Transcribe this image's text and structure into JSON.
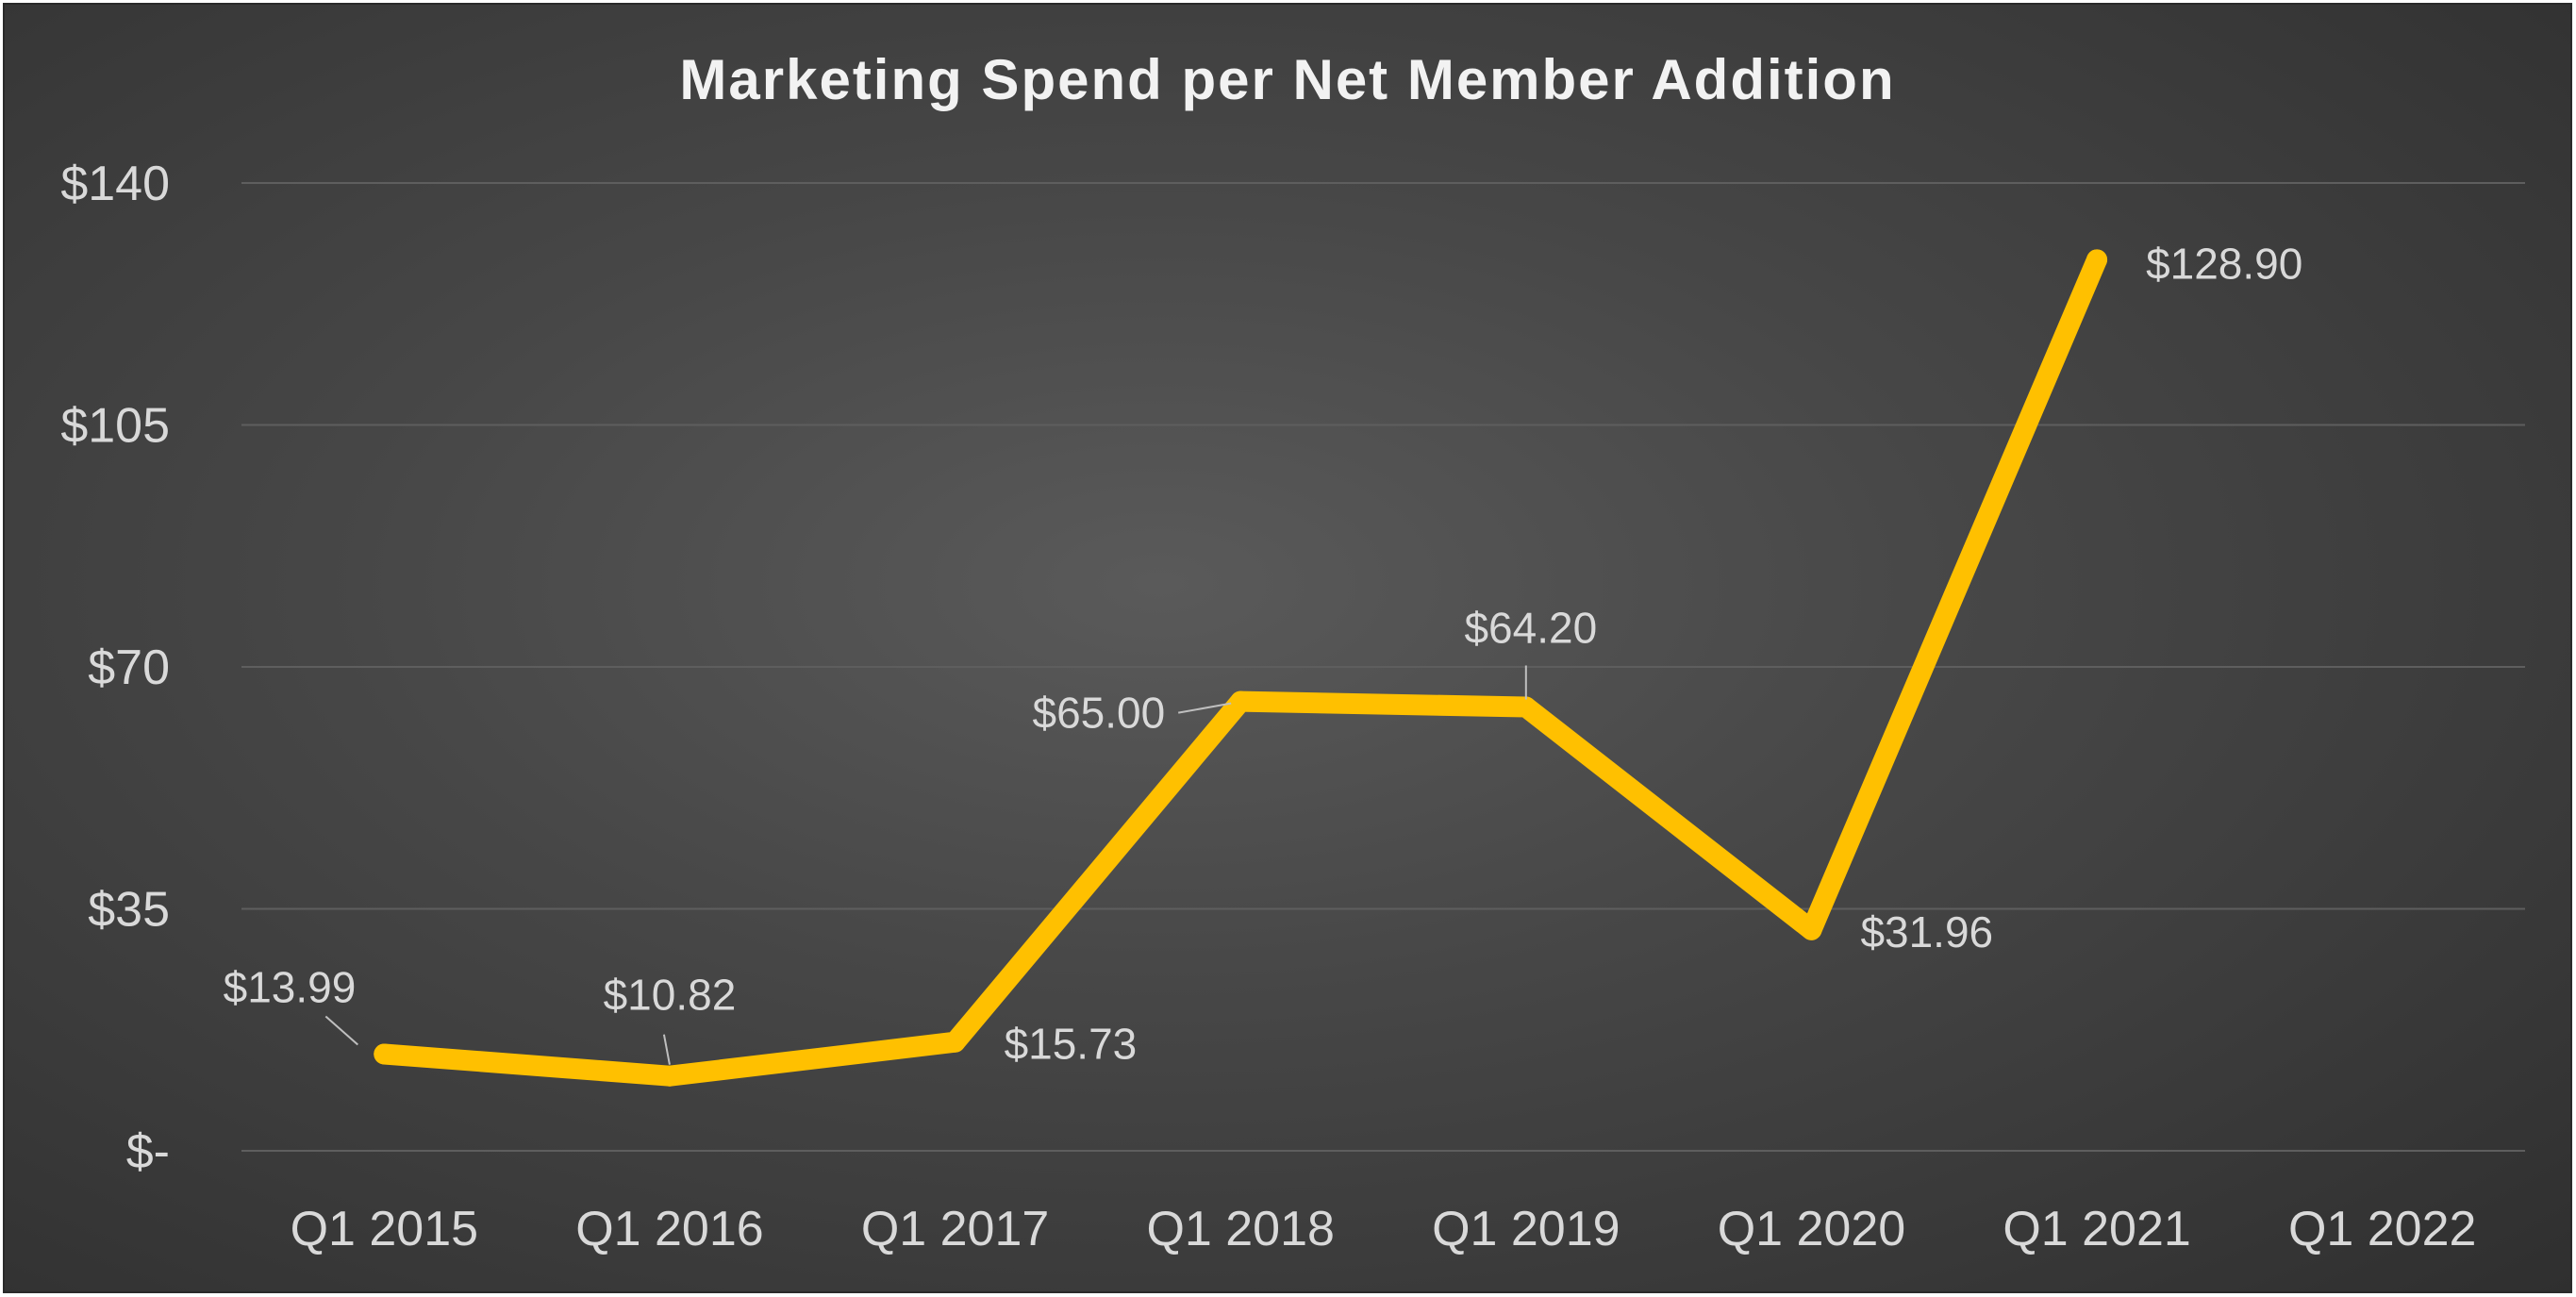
{
  "chart_data": {
    "type": "line",
    "title": "Marketing Spend per Net Member Addition",
    "xlabel": "",
    "ylabel": "",
    "categories": [
      "Q1 2015",
      "Q1 2016",
      "Q1 2017",
      "Q1 2018",
      "Q1 2019",
      "Q1 2020",
      "Q1 2021",
      "Q1 2022"
    ],
    "series": [
      {
        "values": [
          13.99,
          10.82,
          15.73,
          65.0,
          64.2,
          31.96,
          128.9,
          null
        ],
        "labels": [
          "$13.99",
          "$10.82",
          "$15.73",
          "$65.00",
          "$64.20",
          "$31.96",
          "$128.90",
          null
        ]
      }
    ],
    "ylim": [
      0,
      140
    ],
    "yticks": [
      0,
      35,
      70,
      105,
      140
    ],
    "ytick_labels": [
      "$-",
      "$35",
      "$70",
      "$105",
      "$140"
    ],
    "grid": true,
    "legend": "none"
  },
  "colors": {
    "background": "#474747",
    "line": "#ffc000",
    "text": "#d9d9d9",
    "title": "#f2f2f2",
    "grid": "#5e5e5e"
  }
}
